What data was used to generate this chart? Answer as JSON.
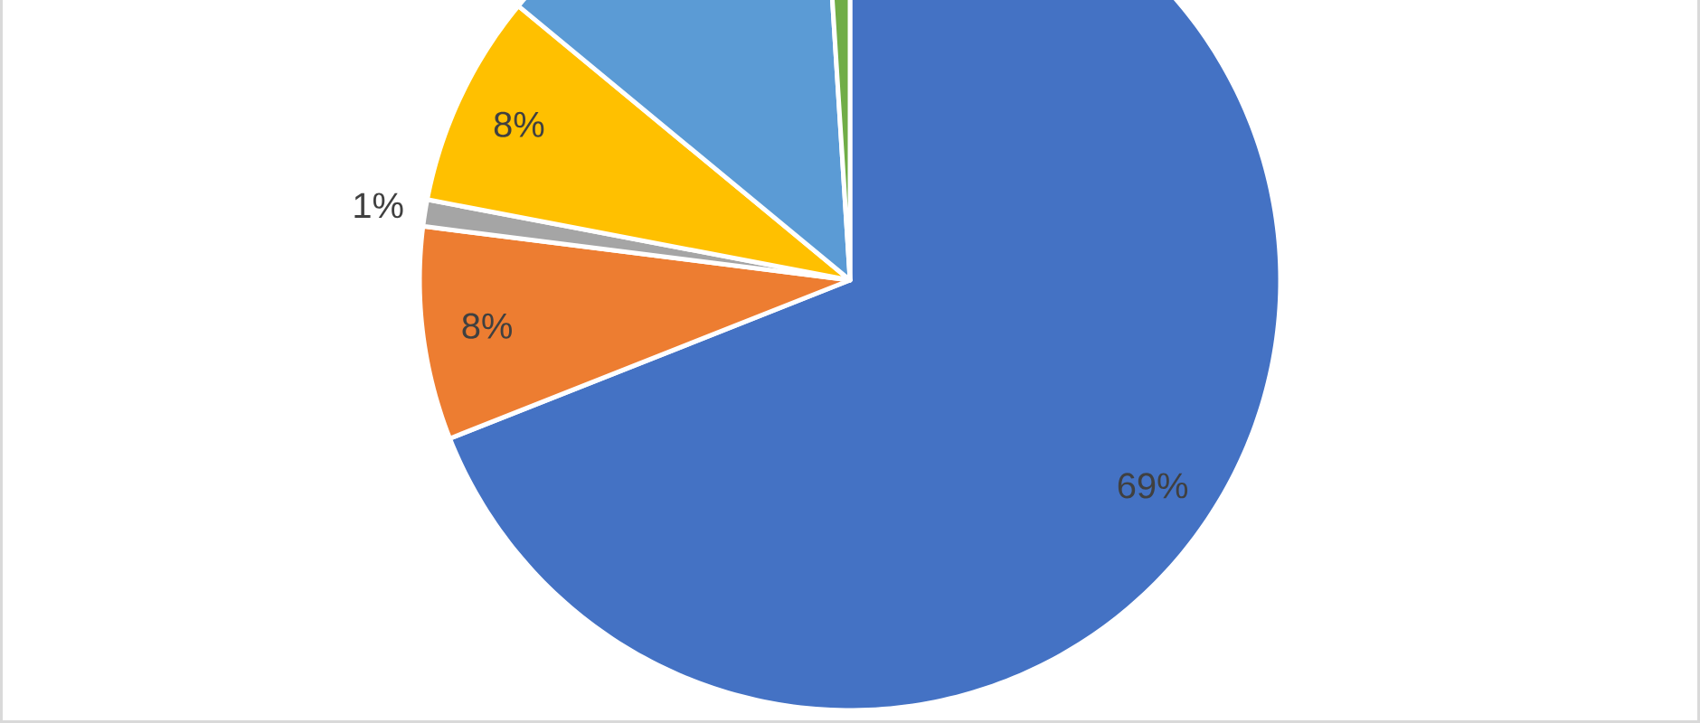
{
  "chart_data": {
    "type": "pie",
    "categories": [
      null,
      null,
      null,
      null,
      null,
      null
    ],
    "values": [
      69,
      8,
      1,
      8,
      13,
      1
    ],
    "colors": [
      "#4472c4",
      "#ed7d31",
      "#a5a5a5",
      "#ffc000",
      "#5b9bd5",
      "#70ad47"
    ],
    "value_labels": [
      "69%",
      "8%",
      "1%",
      "8%",
      null,
      null
    ]
  }
}
